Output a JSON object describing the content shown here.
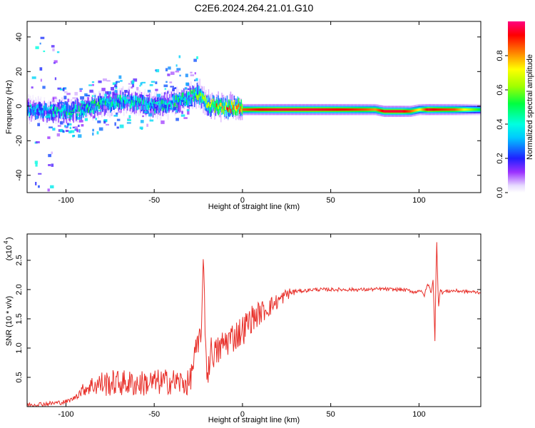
{
  "figure": {
    "title": "C2E6.2024.264.21.01.G10",
    "background": "#ffffff"
  },
  "chart_data": [
    {
      "type": "heatmap",
      "xlabel": "Height of straight line (km)",
      "ylabel": "Frequency (Hz)",
      "xlim": [
        -122,
        135
      ],
      "ylim": [
        -50,
        49
      ],
      "xticks": [
        -100,
        -50,
        0,
        50,
        100
      ],
      "yticks": [
        -40,
        -20,
        0,
        20,
        40
      ],
      "grid": false,
      "colorbar": {
        "label": "Normalized spectral amplitude",
        "range": [
          0.0,
          1.0
        ],
        "ticks": [
          0.0,
          0.2,
          0.4,
          0.6,
          0.8
        ],
        "tick_labels": [
          "0.0",
          "0.2",
          "0.4",
          "0.6",
          "0.8"
        ],
        "colormap": "rainbow-white-violet-blue-cyan-green-yellow-red-magenta"
      },
      "ridge": {
        "x": [
          -120,
          -110,
          -100,
          -90,
          -80,
          -70,
          -60,
          -50,
          -40,
          -30,
          -25,
          -20,
          -15,
          -10,
          -5,
          0,
          10,
          20,
          30,
          40,
          50,
          60,
          70,
          75,
          80,
          90,
          95,
          100,
          105,
          110,
          120,
          130,
          135
        ],
        "frequency": [
          -2,
          -3,
          -3,
          -2,
          1,
          3,
          2,
          0,
          2,
          5,
          7,
          1,
          0,
          -1,
          0,
          -2,
          -2,
          -2,
          -2,
          -2,
          -2,
          -2,
          -2,
          -2,
          -3,
          -3,
          -3,
          -2,
          -2,
          -2,
          -2,
          -2,
          -2
        ],
        "amplitude": [
          0.35,
          0.4,
          0.45,
          0.45,
          0.45,
          0.45,
          0.42,
          0.4,
          0.45,
          0.5,
          0.55,
          0.7,
          0.75,
          0.75,
          0.8,
          0.85,
          0.92,
          0.95,
          0.95,
          0.95,
          0.93,
          0.9,
          0.85,
          0.8,
          0.95,
          0.95,
          0.85,
          0.7,
          0.95,
          0.9,
          0.85,
          0.6,
          0.5
        ]
      }
    },
    {
      "type": "line",
      "xlabel": "Height of straight line (km)",
      "ylabel": "SNR (10 * v/v)",
      "scale_label": "(x10",
      "scale_exponent": "4",
      "scale_close": ")",
      "xlim": [
        -122,
        135
      ],
      "ylim": [
        0,
        2.95
      ],
      "xticks": [
        -100,
        -50,
        0,
        50,
        100
      ],
      "yticks": [
        0.5,
        1.0,
        1.5,
        2.0,
        2.5
      ],
      "ytick_labels": [
        "0.5",
        "1.0",
        "1.5",
        "2.0",
        "2.5"
      ],
      "grid": false,
      "series": [
        {
          "color": "#e8302a",
          "x": [
            -122,
            -110,
            -100,
            -95,
            -90,
            -85,
            -80,
            -70,
            -60,
            -50,
            -40,
            -30,
            -27,
            -25,
            -23,
            -22,
            -21,
            -20,
            -18,
            -15,
            -10,
            -5,
            0,
            5,
            10,
            15,
            20,
            25,
            30,
            35,
            40,
            50,
            60,
            70,
            80,
            85,
            90,
            95,
            98,
            100,
            103,
            105,
            107,
            108,
            109,
            110,
            111,
            112,
            113,
            115,
            120,
            130,
            135
          ],
          "values": [
            0.03,
            0.05,
            0.08,
            0.15,
            0.25,
            0.3,
            0.3,
            0.32,
            0.3,
            0.32,
            0.34,
            0.3,
            0.8,
            1.0,
            1.5,
            2.5,
            1.2,
            0.5,
            0.95,
            0.9,
            1.1,
            1.2,
            1.3,
            1.5,
            1.6,
            1.7,
            1.8,
            1.92,
            1.97,
            1.98,
            2.0,
            2.0,
            2.0,
            2.0,
            2.01,
            2.0,
            2.0,
            1.98,
            1.95,
            2.0,
            1.9,
            2.1,
            1.95,
            2.2,
            1.1,
            2.9,
            1.7,
            2.0,
            1.95,
            1.97,
            1.98,
            1.96,
            1.95
          ]
        }
      ]
    }
  ]
}
